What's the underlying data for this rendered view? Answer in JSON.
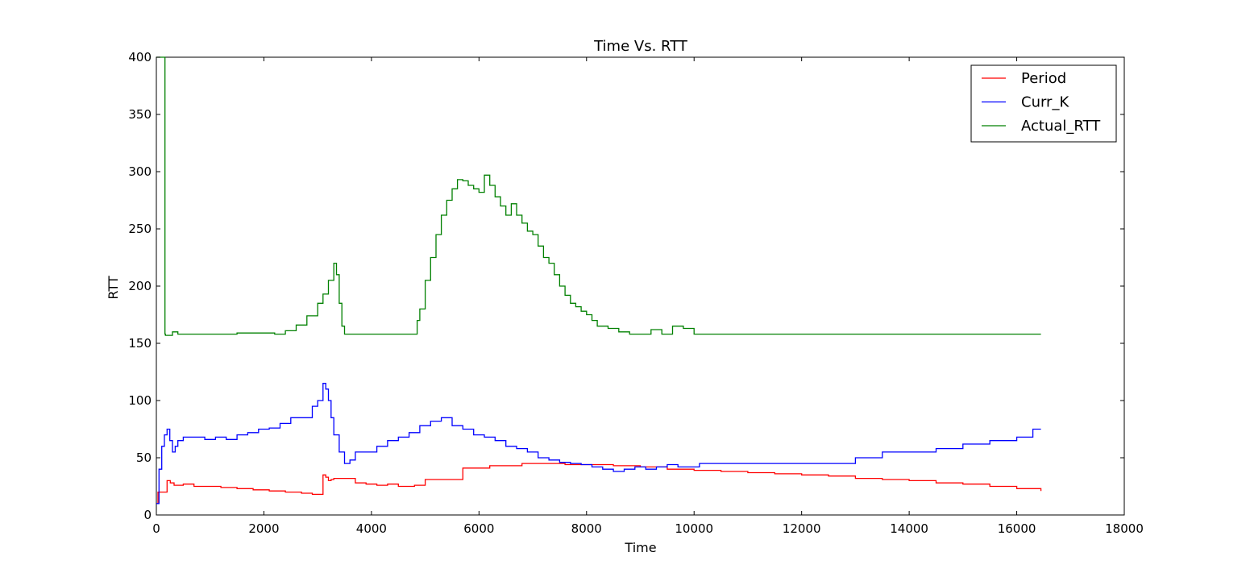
{
  "chart_data": {
    "type": "line",
    "title": "Time Vs. RTT",
    "xlabel": "Time",
    "ylabel": "RTT",
    "xlim": [
      0,
      18000
    ],
    "ylim": [
      0,
      400
    ],
    "xticks": [
      0,
      2000,
      4000,
      6000,
      8000,
      10000,
      12000,
      14000,
      16000,
      18000
    ],
    "yticks": [
      0,
      50,
      100,
      150,
      200,
      250,
      300,
      350,
      400
    ],
    "grid": false,
    "legend_position": "top-right",
    "series": [
      {
        "name": "Period",
        "color": "#ff0000",
        "x": [
          0,
          30,
          50,
          200,
          260,
          330,
          500,
          700,
          900,
          1200,
          1500,
          1800,
          2100,
          2400,
          2700,
          2900,
          3050,
          3100,
          3150,
          3200,
          3250,
          3300,
          3500,
          3700,
          3900,
          4100,
          4300,
          4500,
          4800,
          5000,
          5300,
          5700,
          6200,
          6800,
          7200,
          7600,
          8000,
          8500,
          9000,
          9500,
          10000,
          10500,
          11000,
          11500,
          12000,
          12500,
          13000,
          13500,
          14000,
          14500,
          15000,
          15500,
          16000,
          16450
        ],
        "values": [
          10,
          20,
          20,
          30,
          28,
          26,
          27,
          25,
          25,
          24,
          23,
          22,
          21,
          20,
          19,
          18,
          18,
          35,
          33,
          30,
          31,
          32,
          32,
          28,
          27,
          26,
          27,
          25,
          26,
          31,
          31,
          41,
          43,
          45,
          45,
          44,
          44,
          43,
          42,
          40,
          39,
          38,
          37,
          36,
          35,
          34,
          32,
          31,
          30,
          28,
          27,
          25,
          23,
          21
        ]
      },
      {
        "name": "Curr_K",
        "color": "#0000ff",
        "x": [
          0,
          50,
          100,
          150,
          200,
          250,
          300,
          350,
          400,
          500,
          700,
          900,
          1100,
          1300,
          1500,
          1700,
          1900,
          2100,
          2300,
          2500,
          2700,
          2900,
          3000,
          3100,
          3150,
          3200,
          3250,
          3300,
          3400,
          3500,
          3600,
          3700,
          3900,
          4100,
          4300,
          4500,
          4700,
          4900,
          5100,
          5300,
          5500,
          5700,
          5900,
          6100,
          6300,
          6500,
          6700,
          6900,
          7100,
          7300,
          7500,
          7700,
          7900,
          8100,
          8300,
          8500,
          8700,
          8900,
          9100,
          9300,
          9500,
          9700,
          9900,
          10100,
          10500,
          11000,
          11500,
          12000,
          12500,
          13000,
          13500,
          14000,
          14500,
          15000,
          15500,
          16000,
          16300,
          16450
        ],
        "values": [
          10,
          40,
          60,
          70,
          75,
          65,
          55,
          60,
          65,
          68,
          68,
          66,
          68,
          66,
          70,
          72,
          75,
          76,
          80,
          85,
          85,
          95,
          100,
          115,
          110,
          100,
          85,
          70,
          55,
          45,
          48,
          55,
          55,
          60,
          65,
          68,
          72,
          78,
          82,
          85,
          78,
          75,
          70,
          68,
          65,
          60,
          58,
          55,
          50,
          48,
          46,
          45,
          44,
          42,
          40,
          38,
          40,
          42,
          40,
          42,
          44,
          42,
          42,
          45,
          45,
          45,
          45,
          45,
          45,
          50,
          55,
          55,
          58,
          62,
          65,
          68,
          75,
          75
        ]
      },
      {
        "name": "Actual_RTT",
        "color": "#008000",
        "x": [
          0,
          150,
          160,
          170,
          300,
          400,
          600,
          1000,
          1500,
          2000,
          2200,
          2400,
          2600,
          2800,
          3000,
          3100,
          3200,
          3300,
          3350,
          3400,
          3450,
          3500,
          3600,
          4000,
          4500,
          4800,
          4850,
          4900,
          5000,
          5100,
          5200,
          5300,
          5400,
          5500,
          5600,
          5700,
          5800,
          5900,
          6000,
          6100,
          6200,
          6300,
          6400,
          6500,
          6600,
          6700,
          6800,
          6900,
          7000,
          7100,
          7200,
          7300,
          7400,
          7500,
          7600,
          7700,
          7800,
          7900,
          8000,
          8100,
          8200,
          8300,
          8400,
          8600,
          8800,
          9000,
          9200,
          9400,
          9600,
          9800,
          10000,
          11000,
          12000,
          13000,
          14000,
          15000,
          16000,
          16450
        ],
        "values": [
          400,
          400,
          158,
          157,
          160,
          158,
          158,
          158,
          159,
          159,
          158,
          161,
          166,
          174,
          185,
          193,
          205,
          220,
          210,
          185,
          165,
          158,
          158,
          158,
          158,
          158,
          170,
          180,
          205,
          225,
          245,
          262,
          275,
          285,
          293,
          292,
          288,
          285,
          282,
          297,
          288,
          278,
          270,
          262,
          272,
          262,
          255,
          248,
          245,
          235,
          225,
          220,
          210,
          200,
          192,
          185,
          182,
          178,
          175,
          170,
          165,
          165,
          163,
          160,
          158,
          158,
          162,
          158,
          165,
          163,
          158,
          158,
          158,
          158,
          158,
          158,
          158,
          158
        ]
      }
    ]
  }
}
